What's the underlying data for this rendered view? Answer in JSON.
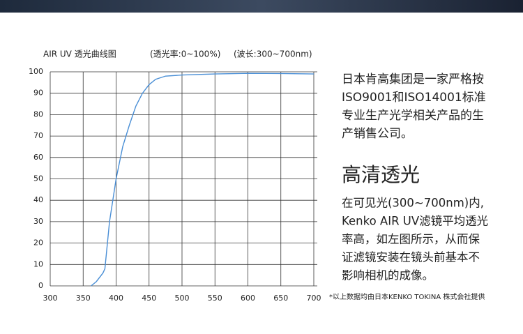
{
  "chart_data": {
    "type": "line",
    "title": "AIR UV 透光曲线图",
    "annotations": [
      "(透光率:0~100%)",
      "(波长:300~700nm)"
    ],
    "x": [
      362,
      370,
      380,
      383,
      390,
      400,
      410,
      420,
      430,
      440,
      450,
      460,
      475,
      500,
      550,
      600,
      650,
      700
    ],
    "values": [
      0,
      2,
      6,
      8,
      30,
      50,
      65,
      75,
      84,
      90,
      94,
      96.5,
      98,
      98.5,
      99,
      99.3,
      99.2,
      99
    ],
    "color": "#4a8fd6",
    "xlim": [
      300,
      700
    ],
    "xticks": [
      300,
      350,
      400,
      450,
      500,
      550,
      600,
      650,
      700
    ],
    "ylim": [
      0,
      100
    ],
    "yticks": [
      0,
      10,
      20,
      30,
      40,
      50,
      60,
      70,
      80,
      90,
      100
    ],
    "grid": true
  },
  "text": {
    "intro": [
      "日本肯高集团是一家严格按",
      "ISO9001和ISO14001标准",
      "专业生产光学相关产品的生",
      "产销售公司。"
    ],
    "heading": "高清透光",
    "body": [
      "在可见光(300~700nm)内,",
      "Kenko AIR UV滤镜平均透光",
      "率高，如左图所示，从而保",
      "证滤镜安装在镜头前基本不",
      "影响相机的成像。"
    ],
    "footnote": "*以上数据均由日本KENKO TOKINA 株式会社提供"
  }
}
